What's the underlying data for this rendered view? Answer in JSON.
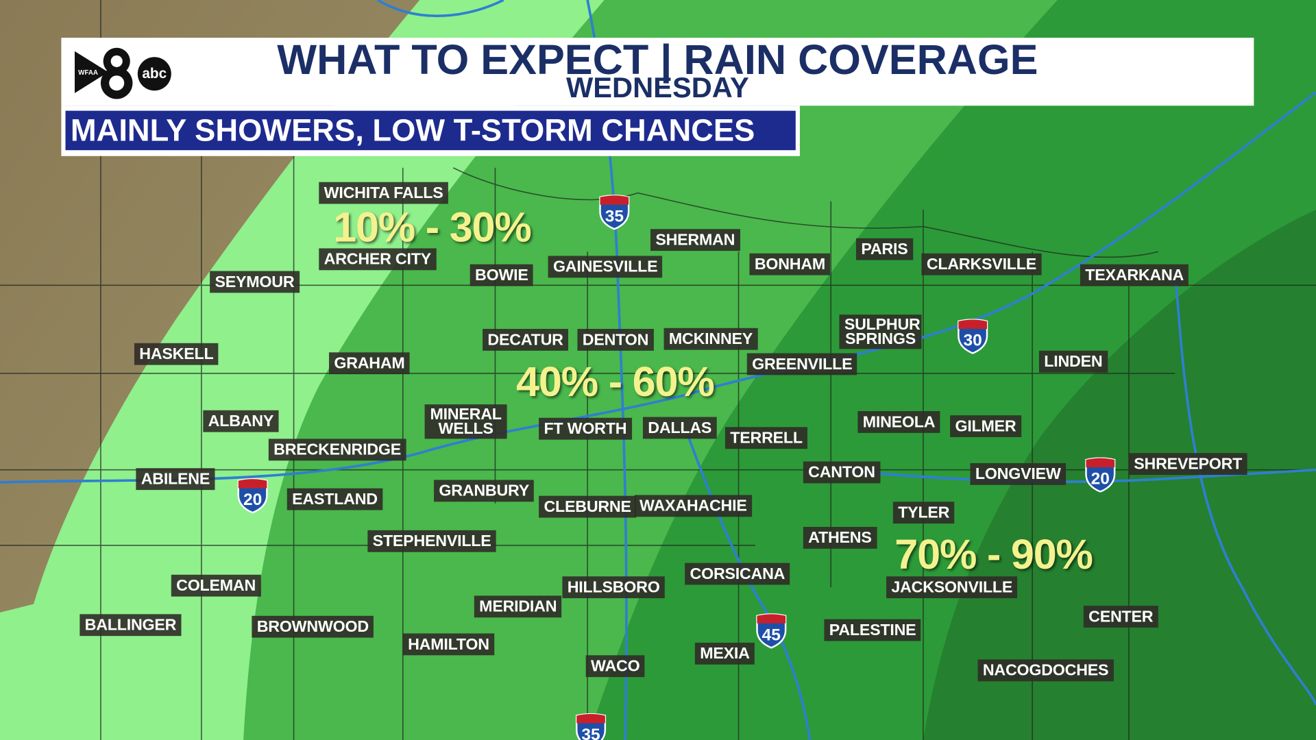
{
  "header": {
    "title": "WHAT TO EXPECT | RAIN COVERAGE",
    "subtitle": "WEDNESDAY",
    "banner": "MAINLY SHOWERS, LOW T-STORM CHANCES"
  },
  "logo": {
    "channel": "8",
    "station": "WFAA",
    "network": "abc"
  },
  "coverage_zones": [
    "10% - 30%",
    "40% - 60%",
    "70% - 90%"
  ],
  "cities": [
    "WICHITA FALLS",
    "ARCHER CITY",
    "SEYMOUR",
    "BOWIE",
    "GAINESVILLE",
    "SHERMAN",
    "BONHAM",
    "PARIS",
    "CLARKSVILLE",
    "TEXARKANA",
    "HASKELL",
    "GRAHAM",
    "DECATUR",
    "DENTON",
    "MCKINNEY",
    "SULPHUR SPRINGS",
    "GREENVILLE",
    "LINDEN",
    "ALBANY",
    "MINERAL WELLS",
    "BRECKENRIDGE",
    "FT WORTH",
    "DALLAS",
    "TERRELL",
    "MINEOLA",
    "GILMER",
    "ABILENE",
    "EASTLAND",
    "GRANBURY",
    "CANTON",
    "LONGVIEW",
    "SHREVEPORT",
    "CLEBURNE",
    "WAXAHACHIE",
    "TYLER",
    "STEPHENVILLE",
    "ATHENS",
    "COLEMAN",
    "HILLSBORO",
    "CORSICANA",
    "JACKSONVILLE",
    "MERIDIAN",
    "BALLINGER",
    "BROWNWOOD",
    "PALESTINE",
    "CENTER",
    "HAMILTON",
    "WACO",
    "MEXIA",
    "NACOGDOCHES"
  ],
  "interstates": [
    "35",
    "30",
    "20",
    "20",
    "45",
    "35"
  ]
}
